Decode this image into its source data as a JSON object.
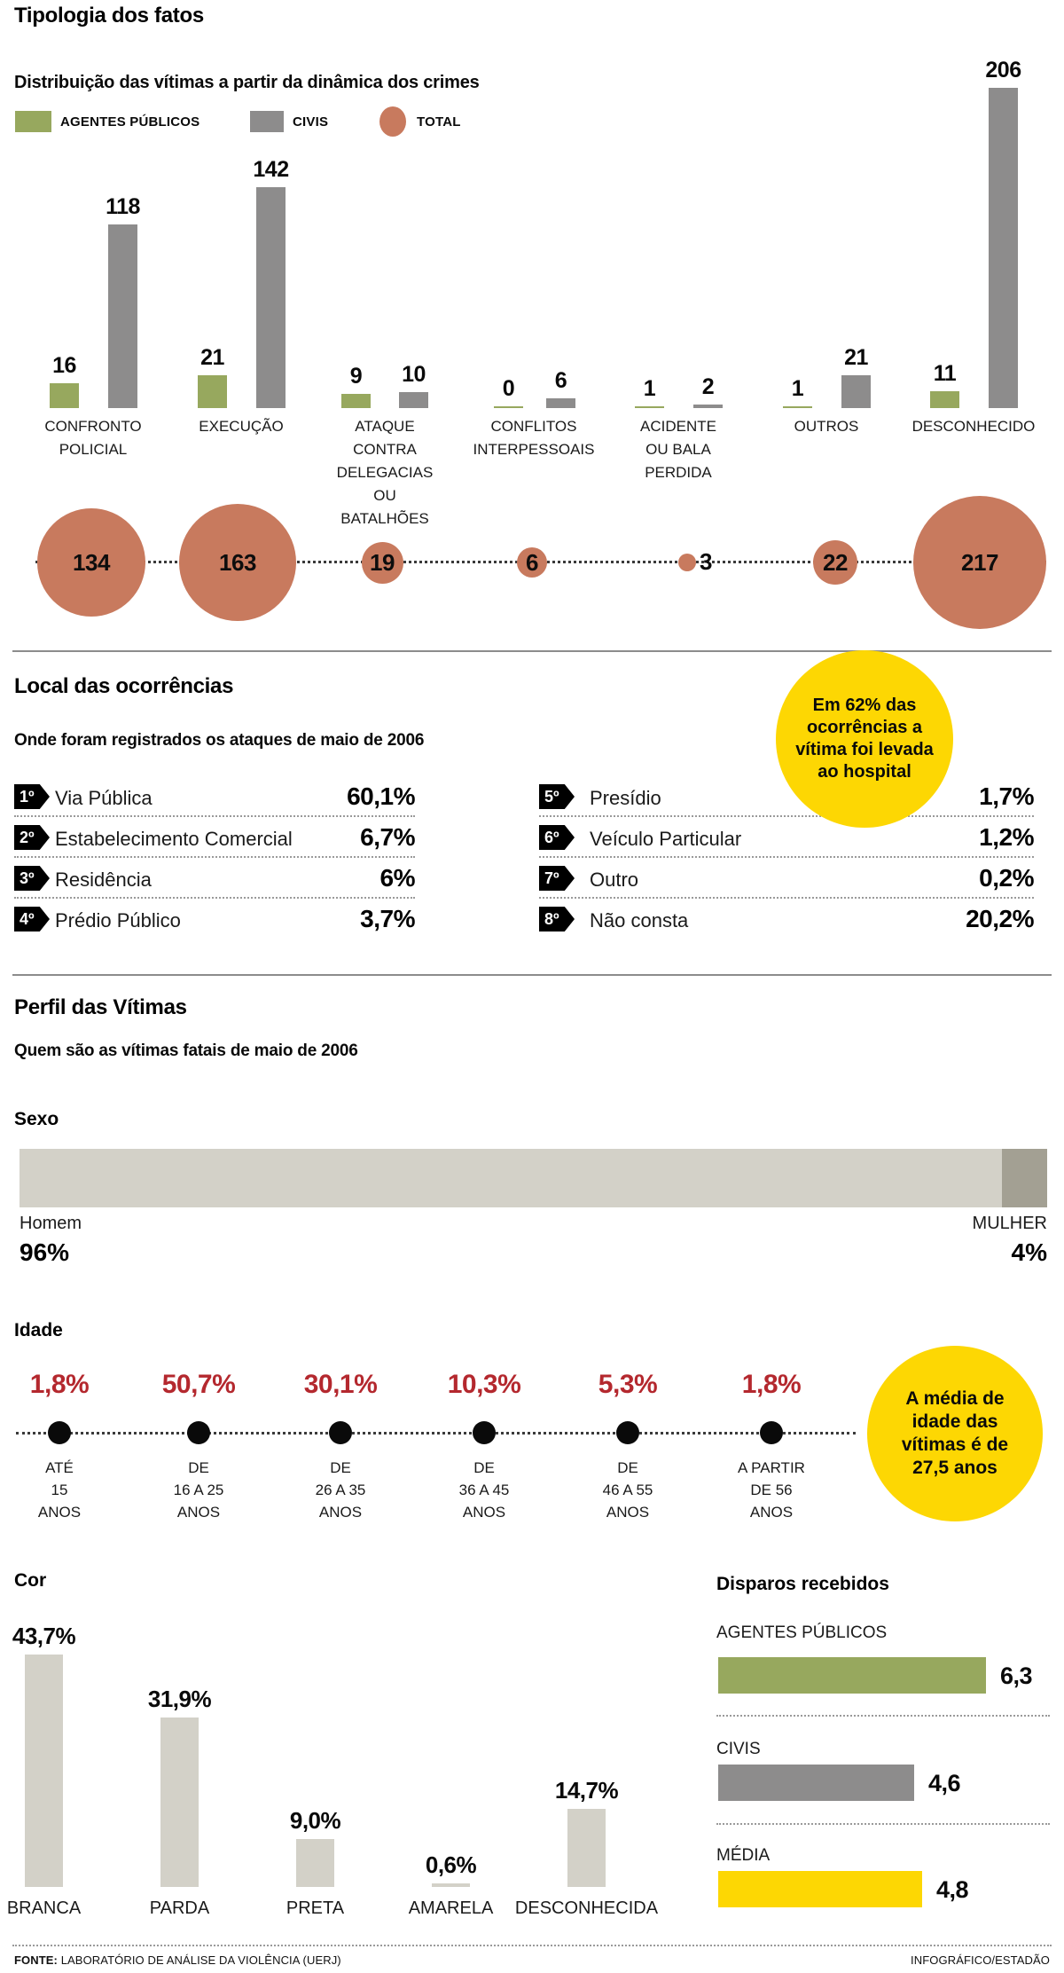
{
  "colors": {
    "green": "#97a85e",
    "gray": "#8d8c8c",
    "terracotta": "#c87a5e",
    "yellow": "#fdd703",
    "beige": "#d3d1c8",
    "beige_dark": "#a3a093",
    "red": "#b4282e",
    "black": "#0a0a0a"
  },
  "header": {
    "title": "Tipologia dos fatos",
    "subtitle": "Distribuição das vítimas a partir da dinâmica dos crimes"
  },
  "legend": {
    "agentes": "AGENTES PÚBLICOS",
    "civis": "CIVIS",
    "total": "TOTAL"
  },
  "chart_data": [
    {
      "id": "typology",
      "type": "bar",
      "title": "Tipologia dos fatos",
      "categories": [
        "CONFRONTO\nPOLICIAL",
        "EXECUÇÃO",
        "ATAQUE\nCONTRA\nDELEGACIAS\nOU\nBATALHÕES",
        "CONFLITOS\nINTERPESSOAIS",
        "ACIDENTE\nOU BALA\nPERDIDA",
        "OUTROS",
        "DESCONHECIDO"
      ],
      "series": [
        {
          "name": "AGENTES PÚBLICOS",
          "values": [
            16,
            21,
            9,
            0,
            1,
            1,
            11
          ]
        },
        {
          "name": "CIVIS",
          "values": [
            118,
            142,
            10,
            6,
            2,
            21,
            206
          ]
        }
      ],
      "totals": {
        "name": "TOTAL",
        "values": [
          134,
          163,
          19,
          6,
          3,
          22,
          217
        ]
      },
      "ylim": [
        0,
        217
      ],
      "grid": false,
      "legend_position": "top"
    },
    {
      "id": "sexo",
      "type": "bar",
      "title": "Sexo",
      "categories": [
        "Homem",
        "MULHER"
      ],
      "values": [
        96,
        4
      ],
      "labels": [
        "96%",
        "4%"
      ]
    },
    {
      "id": "idade",
      "type": "line",
      "title": "Idade",
      "categories": [
        "ATÉ\n15\nANOS",
        "DE\n16 A 25\nANOS",
        "DE\n26 A 35\nANOS",
        "DE\n36 A 45\nANOS",
        "DE\n46 A 55\nANOS",
        "A PARTIR\nDE 56\nANOS"
      ],
      "values": [
        1.8,
        50.7,
        30.1,
        10.3,
        5.3,
        1.8
      ],
      "labels": [
        "1,8%",
        "50,7%",
        "30,1%",
        "10,3%",
        "5,3%",
        "1,8%"
      ]
    },
    {
      "id": "cor",
      "type": "bar",
      "title": "Cor",
      "categories": [
        "BRANCA",
        "PARDA",
        "PRETA",
        "AMARELA",
        "DESCONHECIDA"
      ],
      "values": [
        43.7,
        31.9,
        9.0,
        0.6,
        14.7
      ],
      "labels": [
        "43,7%",
        "31,9%",
        "9,0%",
        "0,6%",
        "14,7%"
      ]
    },
    {
      "id": "disparos",
      "type": "bar",
      "title": "Disparos recebidos",
      "categories": [
        "AGENTES PÚBLICOS",
        "CIVIS",
        "MÉDIA"
      ],
      "values": [
        6.3,
        4.6,
        4.8
      ],
      "labels": [
        "6,3",
        "4,6",
        "4,8"
      ]
    }
  ],
  "local": {
    "title": "Local das ocorrências",
    "subtitle": "Onde foram registrados os ataques de maio de 2006",
    "left": [
      {
        "rank": "1º",
        "label": "Via Pública",
        "value": "60,1%"
      },
      {
        "rank": "2º",
        "label": "Estabelecimento Comercial",
        "value": "6,7%"
      },
      {
        "rank": "3º",
        "label": "Residência",
        "value": "6%"
      },
      {
        "rank": "4º",
        "label": "Prédio Público",
        "value": "3,7%"
      }
    ],
    "right": [
      {
        "rank": "5º",
        "label": "Presídio",
        "value": "1,7%"
      },
      {
        "rank": "6º",
        "label": "Veículo Particular",
        "value": "1,2%"
      },
      {
        "rank": "7º",
        "label": "Outro",
        "value": "0,2%"
      },
      {
        "rank": "8º",
        "label": "Não consta",
        "value": "20,2%"
      }
    ],
    "callout": {
      "before": "Em ",
      "bold": "62%",
      "after": " das ocorrências a vítima foi levada ao hospital"
    }
  },
  "perfil": {
    "title": "Perfil das Vítimas",
    "subtitle": "Quem são as vítimas fatais de maio de 2006",
    "sexo_heading": "Sexo",
    "sexo_left_label": "Homem",
    "sexo_left_value": "96%",
    "sexo_right_label": "MULHER",
    "sexo_right_value": "4%",
    "idade_heading": "Idade",
    "idade_callout": {
      "before": "A média de idade das vítimas é de ",
      "bold": "27,5 anos",
      "after": ""
    },
    "cor_heading": "Cor",
    "disparos_heading": "Disparos recebidos"
  },
  "footer": {
    "source_label": "FONTE:",
    "source": " LABORATÓRIO DE ANÁLISE DA VIOLÊNCIA (UERJ)",
    "credit": "INFOGRÁFICO/ESTADÃO"
  }
}
